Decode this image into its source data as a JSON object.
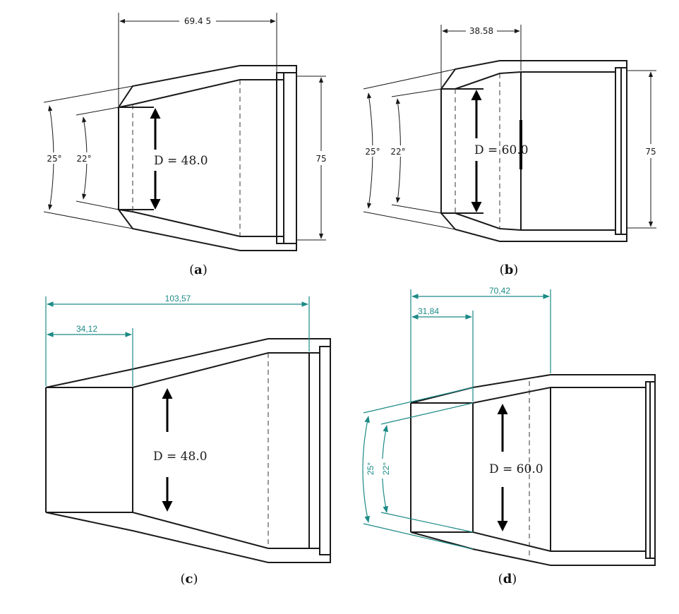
{
  "panels": {
    "a": {
      "caption_letter": "a",
      "dim_top": "69.4 5",
      "dim_right": "75",
      "angle_outer": "25°",
      "angle_inner": "22°",
      "diameter": "D = 48.0"
    },
    "b": {
      "caption_letter": "b",
      "dim_top": "38.58",
      "dim_right": "75",
      "angle_outer": "25°",
      "angle_inner": "22°",
      "diameter": "D = 60.0"
    },
    "c": {
      "caption_letter": "c",
      "dim_total": "103,57",
      "dim_inner": "34,12",
      "diameter": "D = 48.0"
    },
    "d": {
      "caption_letter": "d",
      "dim_total": "70,42",
      "dim_inner": "31,84",
      "angle_outer": "25°",
      "angle_inner": "22°",
      "diameter": "D = 60.0"
    }
  },
  "colors": {
    "line": "#1a1a1a",
    "dimension_teal": "#1c8a86",
    "hatch": "#1a1a1a",
    "background": "#ffffff"
  }
}
